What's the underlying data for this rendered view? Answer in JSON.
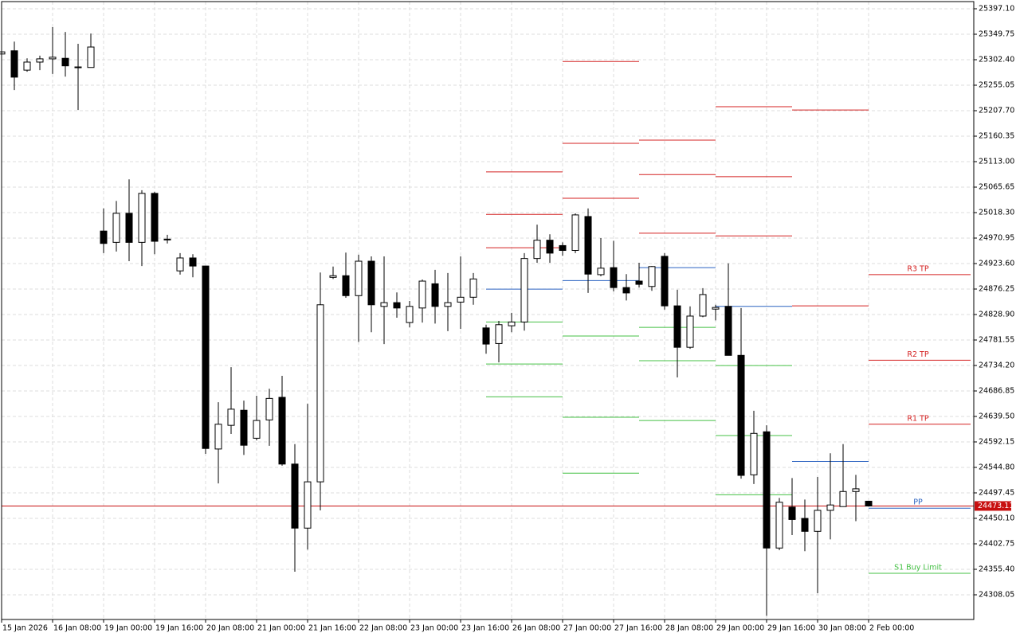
{
  "chart_data": {
    "type": "candlestick",
    "categories": [
      "15 Jan 2026",
      null,
      null,
      null,
      "16 Jan 08:00",
      null,
      null,
      null,
      "19 Jan 00:00",
      null,
      null,
      null,
      "19 Jan 16:00",
      null,
      null,
      null,
      "20 Jan 08:00",
      null,
      null,
      null,
      "21 Jan 00:00",
      null,
      null,
      null,
      "21 Jan 16:00",
      null,
      null,
      null,
      "22 Jan 08:00",
      null,
      null,
      null,
      "23 Jan 00:00",
      null,
      null,
      null,
      "23 Jan 16:00",
      null,
      null,
      null,
      "26 Jan 08:00",
      null,
      null,
      null,
      "27 Jan 00:00",
      null,
      null,
      null,
      "27 Jan 16:00",
      null,
      null,
      null,
      "28 Jan 08:00",
      null,
      null,
      null,
      "29 Jan 00:00",
      null,
      null,
      null,
      "29 Jan 16:00",
      null,
      null,
      null,
      "30 Jan 08:00",
      null,
      null,
      null,
      "2 Feb 00:00"
    ],
    "open": [
      25313,
      25319,
      25283,
      25298,
      25304,
      25305,
      25289,
      25288,
      24984,
      24963,
      25017,
      24963,
      25054,
      24969,
      24910,
      24934,
      24919,
      24579,
      24623,
      24651,
      24599,
      24633,
      24675,
      24551,
      24432,
      24518,
      24898,
      24901,
      24864,
      24928,
      24844,
      24851,
      24814,
      24841,
      24886,
      24844,
      24852,
      24861,
      24804,
      24775,
      24808,
      24815,
      24933,
      24967,
      24957,
      24948,
      25011,
      24903,
      24916,
      24879,
      24891,
      24881,
      24937,
      24845,
      24768,
      24826,
      24839,
      24844,
      24753,
      24531,
      24611,
      24395,
      24471,
      24450,
      24426,
      24465,
      24472,
      24500,
      24482
    ],
    "high": [
      25319,
      25336,
      25305,
      25310,
      25363,
      25354,
      25332,
      25351,
      25026,
      25040,
      25080,
      25060,
      25057,
      24977,
      24943,
      24941,
      24919,
      24666,
      24731,
      24669,
      24678,
      24691,
      24715,
      24588,
      24663,
      24907,
      24918,
      24944,
      24940,
      24937,
      24937,
      24870,
      24854,
      24894,
      24912,
      24906,
      24937,
      24906,
      24810,
      24817,
      24832,
      24943,
      24996,
      24978,
      24963,
      25017,
      25026,
      24971,
      24966,
      24904,
      24925,
      24919,
      24943,
      24875,
      24844,
      24878,
      24847,
      24924,
      24841,
      24650,
      24623,
      24488,
      24525,
      24485,
      24527,
      24571,
      24588,
      24531,
      24482
    ],
    "low": [
      25310,
      25246,
      25280,
      25283,
      25276,
      25271,
      25209,
      25288,
      24943,
      24946,
      24928,
      24919,
      24941,
      24961,
      24903,
      24898,
      24570,
      24515,
      24607,
      24568,
      24595,
      24585,
      24548,
      24351,
      24392,
      24465,
      24895,
      24860,
      24778,
      24796,
      24774,
      24823,
      24805,
      24814,
      24812,
      24798,
      24802,
      24847,
      24756,
      24740,
      24796,
      24799,
      24925,
      24925,
      24938,
      24943,
      24869,
      24900,
      24872,
      24855,
      24879,
      24873,
      24838,
      24712,
      24765,
      24824,
      24818,
      24753,
      24524,
      24514,
      24269,
      24391,
      24419,
      24389,
      24311,
      24411,
      24472,
      24445,
      24472
    ],
    "close": [
      25317,
      25270,
      25298,
      25304,
      25307,
      25291,
      25288,
      25326,
      24961,
      25017,
      24963,
      25054,
      24965,
      24968,
      24934,
      24919,
      24580,
      24625,
      24653,
      24586,
      24632,
      24673,
      24551,
      24432,
      24518,
      24847,
      24901,
      24864,
      24928,
      24847,
      24851,
      24841,
      24844,
      24891,
      24844,
      24851,
      24861,
      24895,
      24774,
      24810,
      24815,
      24933,
      24967,
      24943,
      24948,
      25014,
      24904,
      24915,
      24879,
      24869,
      24885,
      24918,
      24845,
      24768,
      24826,
      24866,
      24842,
      24753,
      24530,
      24608,
      24395,
      24480,
      24448,
      24426,
      24465,
      24475,
      24500,
      24505,
      24473.11
    ],
    "up_color": "#ffffff",
    "down_color": "#000000",
    "last_price": 24473.11,
    "last_price_color": "#c81010",
    "resistance_color": "#d42020",
    "pivot_color": "#2a62c0",
    "support_color": "#44c044",
    "pivots": [
      {
        "r": [
          24953,
          25015,
          25094
        ],
        "pp": 24876,
        "s": [
          24815,
          24737,
          24676
        ]
      },
      {
        "r": [
          25045,
          25147,
          25299
        ],
        "pp": 24892,
        "s": [
          24789,
          24638,
          24534
        ]
      },
      {
        "r": [
          24980,
          25089,
          25153
        ],
        "pp": 24916,
        "s": [
          24805,
          24743,
          24632
        ]
      },
      {
        "r": [
          24975,
          25085,
          25215
        ],
        "pp": 24844,
        "s": [
          24734,
          24604,
          24494
        ]
      },
      {
        "r": [
          24845,
          25209
        ],
        "pp": 24556,
        "s": []
      },
      {
        "r": [
          24625,
          24744,
          24903
        ],
        "r_labels": [
          "R1 TP",
          "R2 TP",
          "R3 TP"
        ],
        "pp": 24469,
        "pp_label": "PP",
        "s": [
          24348
        ],
        "s_labels": [
          "S1 Buy Limit"
        ]
      }
    ],
    "ylim": [
      24262.2,
      25410.4
    ],
    "yticks": [
      {
        "value": 25397.1,
        "label": "25397.10"
      },
      25349.75,
      {
        "value": 25302.4,
        "label": "25302.40"
      },
      25255.05,
      {
        "value": 25207.7,
        "label": "25207.70"
      },
      25160.35,
      {
        "value": 25113,
        "label": "25113.00"
      },
      25065.65,
      {
        "value": 25018.3,
        "label": "25018.30"
      },
      24970.95,
      {
        "value": 24923.6,
        "label": "24923.60"
      },
      24876.25,
      {
        "value": 24828.9,
        "label": "24828.90"
      },
      24781.55,
      {
        "value": 24734.2,
        "label": "24734.20"
      },
      24686.85,
      {
        "value": 24639.5,
        "label": "24639.50"
      },
      24592.15,
      {
        "value": 24544.8,
        "label": "24544.80"
      },
      24497.45,
      {
        "value": 24450.1,
        "label": "24450.10"
      },
      24402.75,
      {
        "value": 24355.4,
        "label": "24355.40"
      },
      24308.05
    ],
    "grid": true
  }
}
